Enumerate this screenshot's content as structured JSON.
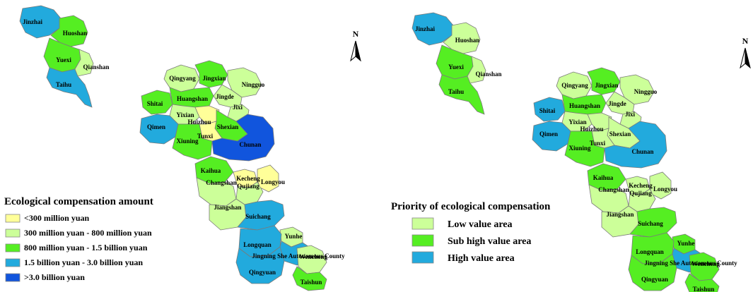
{
  "colors": {
    "amount_lt300m": "#ffff99",
    "amount_300m_800m": "#ccff99",
    "amount_800m_1_5b": "#55ee22",
    "amount_1_5b_3b": "#22aadd",
    "amount_gt3b": "#1155dd",
    "priority_low": "#ccff99",
    "priority_subhigh": "#55ee22",
    "priority_high": "#22aadd"
  },
  "left_map": {
    "legend": {
      "title": "Ecological compensation amount",
      "items": [
        {
          "label": "<300 million yuan",
          "color": "#ffff99"
        },
        {
          "label": "300 million yuan - 800 million yuan",
          "color": "#ccff99"
        },
        {
          "label": "800 million yuan - 1.5 billion yuan",
          "color": "#55ee22"
        },
        {
          "label": "1.5 billion yuan  -  3.0 billion yuan",
          "color": "#22aadd"
        },
        {
          "label": ">3.0 billion yuan",
          "color": "#1155dd"
        }
      ]
    },
    "north_label": "N"
  },
  "right_map": {
    "legend": {
      "title": "Priority of ecological compensation",
      "items": [
        {
          "label": "Low value area",
          "color": "#ccff99"
        },
        {
          "label": "Sub high value area",
          "color": "#55ee22"
        },
        {
          "label": "High value area",
          "color": "#22aadd"
        }
      ]
    },
    "north_label": "N"
  },
  "counties": {
    "jinzhai": "Jinzhai",
    "huoshan": "Huoshan",
    "yuexi": "Yuexi",
    "qianshan": "Qianshan",
    "taihu": "Taihu",
    "qingyang": "Qingyang",
    "jingxian": "Jingxian",
    "ningguo": "Ningguo",
    "jingde": "Jingde",
    "shitai": "Shitai",
    "huangshan": "Huangshan",
    "jixi": "Jixi",
    "yixian": "Yixian",
    "huizhou": "Huizhou",
    "shexian": "Shexian",
    "qimen": "Qimen",
    "tunxi": "Tunxi",
    "xiuning": "Xiuning",
    "chunan": "Chunan",
    "kaihua": "Kaihua",
    "kecheng": "Kecheng",
    "qujiang": "Qujiang",
    "longyou": "Longyou",
    "changshan": "Changshan",
    "jiangshan": "Jiangshan",
    "suichang": "Suichang",
    "yunhe": "Yunhe",
    "longquan": "Longquan",
    "jingning": "Jingning She Autonomous County",
    "wencheng": "Wencheng",
    "qingyuan": "Qingyuan",
    "taishun": "Taishun"
  },
  "amount_class": {
    "jinzhai": "amount_1_5b_3b",
    "huoshan": "amount_800m_1_5b",
    "yuexi": "amount_800m_1_5b",
    "qianshan": "amount_300m_800m",
    "taihu": "amount_1_5b_3b",
    "qingyang": "amount_300m_800m",
    "jingxian": "amount_800m_1_5b",
    "ningguo": "amount_300m_800m",
    "jingde": "amount_300m_800m",
    "shitai": "amount_800m_1_5b",
    "huangshan": "amount_800m_1_5b",
    "jixi": "amount_300m_800m",
    "yixian": "amount_300m_800m",
    "huizhou": "amount_lt300m",
    "shexian": "amount_800m_1_5b",
    "qimen": "amount_1_5b_3b",
    "tunxi": "amount_lt300m",
    "xiuning": "amount_800m_1_5b",
    "chunan": "amount_gt3b",
    "kaihua": "amount_800m_1_5b",
    "kecheng": "amount_lt300m",
    "qujiang": "amount_300m_800m",
    "longyou": "amount_lt300m",
    "changshan": "amount_300m_800m",
    "jiangshan": "amount_300m_800m",
    "suichang": "amount_1_5b_3b",
    "yunhe": "amount_300m_800m",
    "longquan": "amount_1_5b_3b",
    "jingning": "amount_1_5b_3b",
    "wencheng": "amount_300m_800m",
    "qingyuan": "amount_1_5b_3b",
    "taishun": "amount_800m_1_5b"
  },
  "priority_class": {
    "jinzhai": "priority_high",
    "huoshan": "priority_low",
    "yuexi": "priority_subhigh",
    "qianshan": "priority_low",
    "taihu": "priority_subhigh",
    "qingyang": "priority_low",
    "jingxian": "priority_subhigh",
    "ningguo": "priority_low",
    "jingde": "priority_low",
    "shitai": "priority_high",
    "huangshan": "priority_subhigh",
    "jixi": "priority_low",
    "yixian": "priority_low",
    "huizhou": "priority_low",
    "shexian": "priority_low",
    "qimen": "priority_high",
    "tunxi": "priority_low",
    "xiuning": "priority_subhigh",
    "chunan": "priority_high",
    "kaihua": "priority_subhigh",
    "kecheng": "priority_low",
    "qujiang": "priority_low",
    "longyou": "priority_low",
    "changshan": "priority_low",
    "jiangshan": "priority_low",
    "suichang": "priority_subhigh",
    "yunhe": "priority_subhigh",
    "longquan": "priority_subhigh",
    "jingning": "priority_high",
    "wencheng": "priority_subhigh",
    "qingyuan": "priority_subhigh",
    "taishun": "priority_subhigh"
  }
}
